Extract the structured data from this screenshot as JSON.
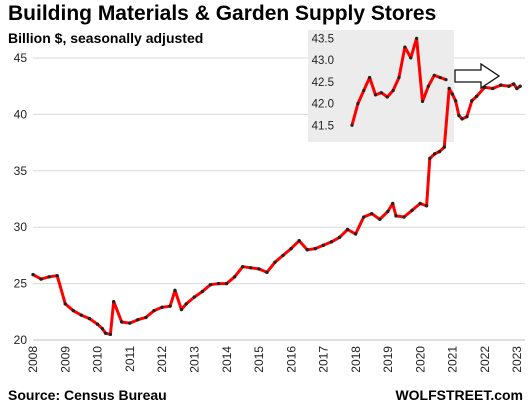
{
  "chart_data": {
    "type": "line",
    "title": "Building Materials & Garden Supply Stores",
    "subtitle": "Billion $, seasonally adjusted",
    "source": "Source: Census Bureau",
    "watermark": "WOLFSTREET.com",
    "ylim": [
      20,
      45
    ],
    "y_ticks": [
      20,
      25,
      30,
      35,
      40,
      45
    ],
    "xlim": [
      2008,
      2023.25
    ],
    "x_ticks": [
      2008,
      2009,
      2010,
      2011,
      2012,
      2013,
      2014,
      2015,
      2016,
      2017,
      2018,
      2019,
      2020,
      2021,
      2022,
      2023
    ],
    "grid": "horizontal",
    "colors": {
      "line": "#ff0000",
      "markers": "#222222",
      "grid": "#d9d9d9",
      "inset_background": "#ececec"
    },
    "series": [
      {
        "x": [
          2008.0,
          2008.25,
          2008.5,
          2008.75,
          2009.0,
          2009.25,
          2009.5,
          2009.75,
          2010.0,
          2010.15,
          2010.25,
          2010.4,
          2010.5,
          2010.75,
          2011.0,
          2011.25,
          2011.5,
          2011.75,
          2012.0,
          2012.25,
          2012.4,
          2012.6,
          2012.75,
          2013.0,
          2013.25,
          2013.5,
          2013.75,
          2014.0,
          2014.25,
          2014.5,
          2014.75,
          2015.0,
          2015.25,
          2015.5,
          2015.75,
          2016.0,
          2016.25,
          2016.5,
          2016.75,
          2017.0,
          2017.25,
          2017.5,
          2017.75,
          2018.0,
          2018.25,
          2018.5,
          2018.75,
          2019.0,
          2019.15,
          2019.25,
          2019.5,
          2019.75,
          2020.0,
          2020.2,
          2020.3,
          2020.45,
          2020.6,
          2020.75,
          2020.9,
          2021.0,
          2021.1,
          2021.2,
          2021.3,
          2021.45,
          2021.6,
          2021.75,
          2022.0,
          2022.25,
          2022.5,
          2022.75,
          2022.9,
          2023.0,
          2023.1
        ],
        "values": [
          25.8,
          25.4,
          25.6,
          25.7,
          23.2,
          22.6,
          22.2,
          21.9,
          21.4,
          21.0,
          20.6,
          20.5,
          23.4,
          21.6,
          21.5,
          21.8,
          22.0,
          22.6,
          22.9,
          23.0,
          24.4,
          22.7,
          23.2,
          23.8,
          24.3,
          24.9,
          25.0,
          25.0,
          25.6,
          26.5,
          26.4,
          26.3,
          26.0,
          26.9,
          27.5,
          28.1,
          28.8,
          28.0,
          28.1,
          28.4,
          28.7,
          29.1,
          29.8,
          29.4,
          30.9,
          31.2,
          30.7,
          31.4,
          32.1,
          31.0,
          30.9,
          31.5,
          32.1,
          31.9,
          36.1,
          36.5,
          36.7,
          37.1,
          42.3,
          41.8,
          41.2,
          39.9,
          39.6,
          39.8,
          41.2,
          41.6,
          42.4,
          42.3,
          42.6,
          42.5,
          42.7,
          42.3,
          42.5
        ]
      }
    ],
    "inset": {
      "ylim": [
        41.3,
        43.6
      ],
      "y_ticks": [
        41.5,
        42.0,
        42.5,
        43.0,
        43.5
      ],
      "values": [
        41.5,
        42.0,
        42.3,
        42.6,
        42.2,
        42.25,
        42.15,
        42.3,
        42.6,
        43.3,
        43.05,
        43.5,
        42.05,
        42.4,
        42.65,
        42.6,
        42.55
      ]
    },
    "arrow": {
      "direction": "right"
    }
  }
}
